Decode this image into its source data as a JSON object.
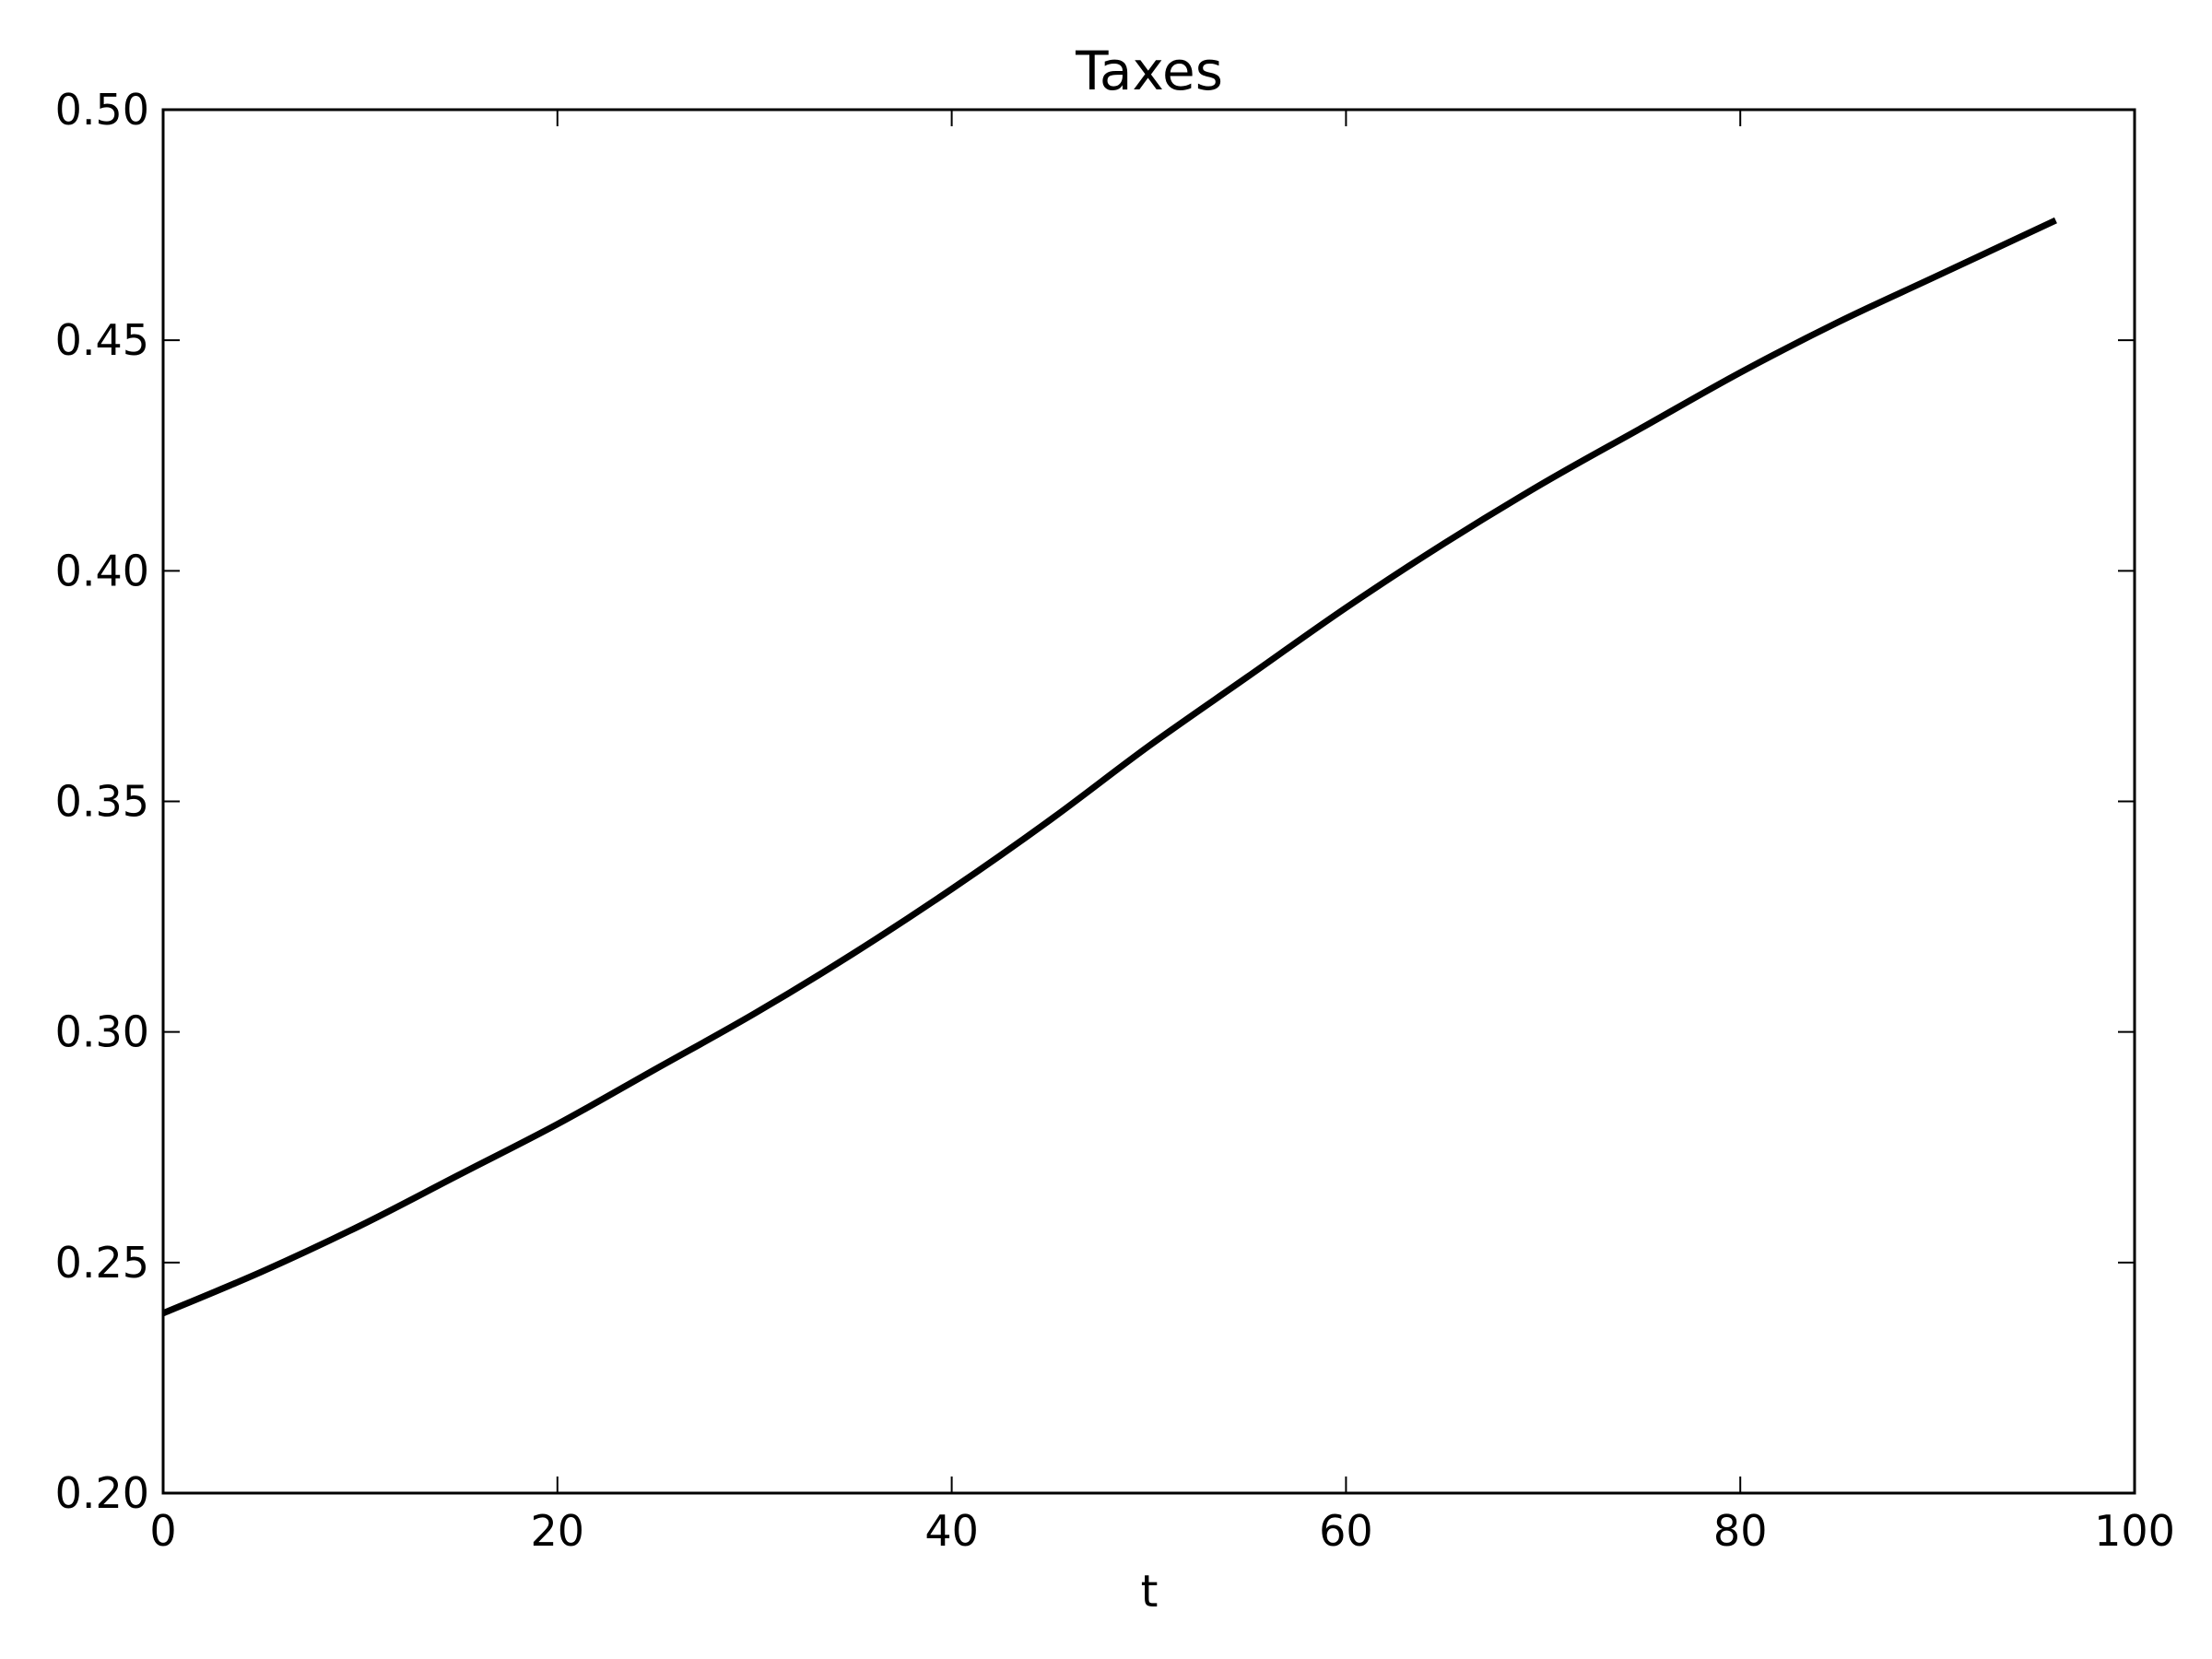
{
  "chart_data": {
    "type": "line",
    "title": "Taxes",
    "xlabel": "t",
    "ylabel": "",
    "xlim": [
      0,
      100
    ],
    "ylim": [
      0.2,
      0.5
    ],
    "xticks": [
      0,
      20,
      40,
      60,
      80,
      100
    ],
    "xtick_labels": [
      "0",
      "20",
      "40",
      "60",
      "80",
      "100"
    ],
    "yticks": [
      0.2,
      0.25,
      0.3,
      0.35,
      0.4,
      0.45,
      0.5
    ],
    "ytick_labels": [
      "0.20",
      "0.25",
      "0.30",
      "0.35",
      "0.40",
      "0.45",
      "0.50"
    ],
    "grid": false,
    "line_color": "#000000",
    "series": [
      {
        "x": [
          0,
          5,
          10,
          15,
          20,
          25,
          30,
          35,
          40,
          45,
          50,
          55,
          60,
          65,
          70,
          75,
          80,
          85,
          90,
          96
        ],
        "y": [
          0.239,
          0.248,
          0.258,
          0.269,
          0.28,
          0.292,
          0.304,
          0.317,
          0.331,
          0.346,
          0.362,
          0.377,
          0.392,
          0.406,
          0.419,
          0.431,
          0.443,
          0.454,
          0.464,
          0.476
        ]
      }
    ]
  }
}
